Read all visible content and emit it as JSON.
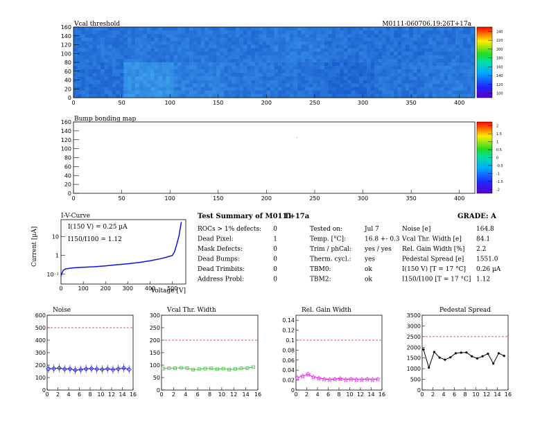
{
  "header": {
    "plot1_title": "Vcal threshold",
    "module_label": "M0111-060706.19:26T+17a",
    "plot2_title": "Bump bonding map"
  },
  "iv_curve": {
    "title": "I-V-Curve",
    "ylabel": "Current [µA]",
    "xlabel": "Voltage [V]",
    "annot_current": "I(150 V) = 0.25 µA",
    "annot_ratio": "I150/I100 = 1.12"
  },
  "summary": {
    "title": "Test Summary of M0111",
    "tag": "T+17a",
    "grade": "GRADE:  A",
    "col1": [
      {
        "label": "ROCs > 1% defects:",
        "value": "0"
      },
      {
        "label": "Dead Pixel:",
        "value": "1"
      },
      {
        "label": "Mask Defects:",
        "value": "0"
      },
      {
        "label": "Dead Bumps:",
        "value": "0"
      },
      {
        "label": "Dead Trimbits:",
        "value": "0"
      },
      {
        "label": "Address Probl:",
        "value": "0"
      }
    ],
    "col2": [
      {
        "label": "Tested on:",
        "value": "Jul 7"
      },
      {
        "label": "Temp. [°C]:",
        "value": "16.8 +- 0.3"
      },
      {
        "label": "Trim / phCal:",
        "value": "yes / yes"
      },
      {
        "label": "Therm. cycl.:",
        "value": "yes"
      },
      {
        "label": "TBM0:",
        "value": "ok"
      },
      {
        "label": "TBM2:",
        "value": "ok"
      }
    ],
    "col3": [
      {
        "label": "Noise [e]",
        "value": "164.8"
      },
      {
        "label": "Vcal Thr. Width [e]",
        "value": "84.1"
      },
      {
        "label": "Rel. Gain Width [%]",
        "value": "2.2"
      },
      {
        "label": "Pedestal Spread [e]",
        "value": "1551.0"
      },
      {
        "label": "I(150 V) [T = 17 °C]",
        "value": "0.26 µA"
      },
      {
        "label": "I150/I100  [T = 17 °C]",
        "value": "1.12"
      }
    ]
  },
  "colors": {
    "noise": "#1a1adc",
    "vcal": "#33cc33",
    "gain": "#ee22ee",
    "pedestal": "#000000",
    "limit": "#e02020",
    "iv": "#1010dd"
  },
  "chart_data": [
    {
      "type": "heatmap",
      "title": "Vcal threshold",
      "xlim": [
        0,
        416
      ],
      "ylim": [
        0,
        160
      ],
      "xticks": [
        0,
        50,
        100,
        150,
        200,
        250,
        300,
        350,
        400
      ],
      "yticks": [
        0,
        20,
        40,
        60,
        80,
        100,
        120,
        140,
        160
      ],
      "zticks": [
        "240",
        "220",
        "200",
        "180",
        "160",
        "140",
        "120",
        "100"
      ],
      "roc_levels_top": [
        0.3,
        0.32,
        0.33,
        0.31,
        0.36,
        0.29,
        0.28,
        0.3
      ],
      "roc_levels_bottom": [
        0.27,
        0.55,
        0.4,
        0.33,
        0.3,
        0.22,
        0.3,
        0.34
      ]
    },
    {
      "type": "heatmap",
      "title": "Bump bonding map",
      "xlim": [
        0,
        416
      ],
      "ylim": [
        0,
        160
      ],
      "xticks": [
        0,
        50,
        100,
        150,
        200,
        250,
        300,
        350,
        400
      ],
      "yticks": [
        0,
        20,
        40,
        60,
        80,
        100,
        120,
        140,
        160
      ],
      "zticks": [
        "2",
        "1.5",
        "1",
        "0.5",
        "0",
        "-0.5",
        "-1",
        "-1.5",
        "-2"
      ]
    },
    {
      "type": "line",
      "title": "I-V-Curve",
      "x": [
        0,
        5,
        10,
        20,
        40,
        60,
        100,
        150,
        200,
        250,
        300,
        350,
        400,
        450,
        480,
        500,
        510,
        520,
        530,
        540
      ],
      "y": [
        0.08,
        0.12,
        0.16,
        0.19,
        0.21,
        0.22,
        0.235,
        0.25,
        0.28,
        0.32,
        0.36,
        0.42,
        0.52,
        0.68,
        0.85,
        1.0,
        1.6,
        4.0,
        12,
        60
      ],
      "xlim": [
        0,
        560
      ],
      "ylog": true,
      "xticks": [
        0,
        100,
        200,
        300,
        400,
        500
      ],
      "yticks_labels": [
        "10⁻¹",
        "1",
        "10"
      ]
    },
    {
      "type": "line",
      "title": "Noise",
      "x": [
        0,
        1,
        2,
        3,
        4,
        5,
        6,
        7,
        8,
        9,
        10,
        11,
        12,
        13,
        14,
        15
      ],
      "y": [
        170,
        172,
        176,
        168,
        170,
        160,
        164,
        170,
        172,
        168,
        165,
        170,
        164,
        170,
        176,
        165
      ],
      "xlim": [
        0,
        16
      ],
      "ylim": [
        0,
        600
      ],
      "limit": 500,
      "xticks": [
        0,
        2,
        4,
        6,
        8,
        10,
        12,
        14,
        16
      ],
      "yticks": [
        0,
        100,
        200,
        300,
        400,
        500,
        600
      ]
    },
    {
      "type": "line",
      "title": "Vcal Thr. Width",
      "x": [
        0,
        1,
        2,
        3,
        4,
        5,
        6,
        7,
        8,
        9,
        10,
        11,
        12,
        13,
        14,
        15
      ],
      "y": [
        86,
        88,
        88,
        89,
        88,
        82,
        84,
        86,
        87,
        84,
        86,
        82,
        84,
        87,
        88,
        92
      ],
      "xlim": [
        0,
        16
      ],
      "ylim": [
        0,
        300
      ],
      "limit": 200,
      "xticks": [
        0,
        2,
        4,
        6,
        8,
        10,
        12,
        14,
        16
      ],
      "yticks": [
        0,
        50,
        100,
        150,
        200,
        250,
        300
      ]
    },
    {
      "type": "line",
      "title": "Rel. Gain Width",
      "x": [
        0,
        1,
        2,
        3,
        4,
        5,
        6,
        7,
        8,
        9,
        10,
        11,
        12,
        13,
        14,
        15
      ],
      "y": [
        0.025,
        0.028,
        0.032,
        0.026,
        0.024,
        0.022,
        0.021,
        0.022,
        0.023,
        0.021,
        0.022,
        0.021,
        0.021,
        0.022,
        0.021,
        0.022
      ],
      "xlim": [
        0,
        16
      ],
      "ylim": [
        0,
        0.15
      ],
      "limit": 0.1,
      "xticks": [
        0,
        2,
        4,
        6,
        8,
        10,
        12,
        14,
        16
      ],
      "yticks": [
        0,
        0.02,
        0.04,
        0.06,
        0.08,
        0.1,
        0.12,
        0.14
      ]
    },
    {
      "type": "line",
      "title": "Pedestal Spread",
      "x": [
        0,
        1,
        2,
        3,
        4,
        5,
        6,
        7,
        8,
        9,
        10,
        11,
        12,
        13,
        14,
        15
      ],
      "y": [
        1900,
        1050,
        1780,
        1520,
        1420,
        1530,
        1720,
        1750,
        1760,
        1580,
        1480,
        1580,
        1700,
        1240,
        1720,
        1600
      ],
      "xlim": [
        0,
        16
      ],
      "ylim": [
        0,
        3500
      ],
      "limit": 2500,
      "xticks": [
        0,
        2,
        4,
        6,
        8,
        10,
        12,
        14,
        16
      ],
      "yticks": [
        0,
        500,
        1000,
        1500,
        2000,
        2500,
        3000,
        3500
      ]
    }
  ]
}
